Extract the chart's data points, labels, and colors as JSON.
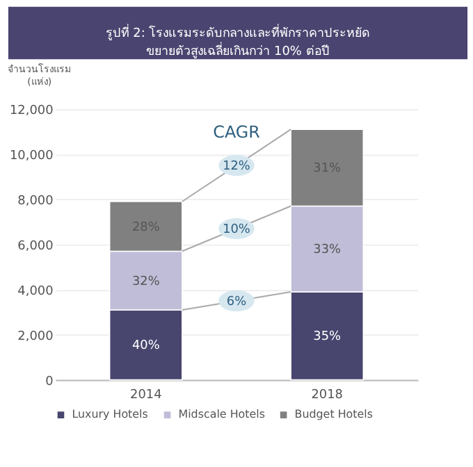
{
  "chart_data": {
    "type": "bar",
    "stacked": true,
    "title": "รูปที่ 2: โรงแรมระดับกลางและที่พักราคาประหยัด\nขยายตัวสูงเฉลี่ยเกินกว่า 10% ต่อปี",
    "ylabel": "จำนวนโรงแรม\n(แห่ง)",
    "categories": [
      "2014",
      "2018"
    ],
    "series": [
      {
        "name": "Luxury Hotels",
        "color": "#48456e",
        "values": [
          3100,
          3900
        ]
      },
      {
        "name": "Midscale Hotels",
        "color": "#c0bdd8",
        "values": [
          2600,
          3800
        ]
      },
      {
        "name": "Budget Hotels",
        "color": "#808080",
        "values": [
          2200,
          3400
        ]
      }
    ],
    "annotations": [
      "CAGR",
      "40%",
      "35%",
      "32%",
      "33%",
      "28%",
      "31%",
      {
        "text": "6%",
        "y": 3500
      },
      {
        "text": "10%",
        "y": 6700
      },
      {
        "text": "12%",
        "y": 9500
      }
    ],
    "ylim": [
      0,
      12000
    ],
    "yticks": [
      0,
      {
        "value": 2000,
        "label": "2,000"
      },
      {
        "value": 4000,
        "label": "4,000"
      },
      {
        "value": 6000,
        "label": "6,000"
      },
      {
        "value": 8000,
        "label": "8,000"
      },
      {
        "value": 10000,
        "label": "10,000"
      },
      {
        "value": 12000,
        "label": "12,000"
      }
    ],
    "grid": "y",
    "legend": "bottom"
  }
}
